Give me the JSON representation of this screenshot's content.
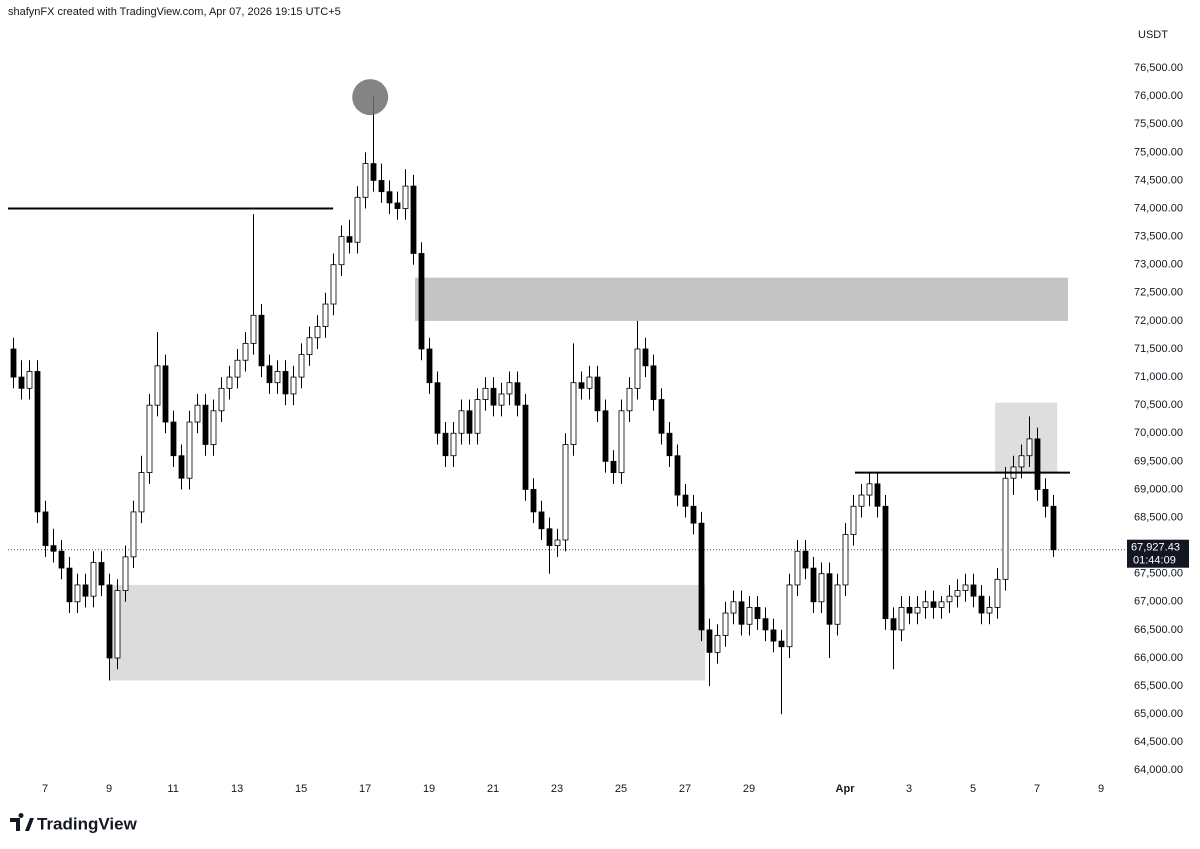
{
  "chart_data": {
    "type": "candlestick",
    "header": "shafynFX created with TradingView.com, Apr 07, 2026 19:15 UTC+5",
    "currency": "USDT",
    "brand": "TradingView",
    "up_color": "#ffffff",
    "down_color": "#000000",
    "wick_color": "#000000",
    "xlim": [
      5.84,
      40.75
    ],
    "ylim": [
      63650,
      77000
    ],
    "xticks": [
      7,
      9,
      11,
      13,
      15,
      17,
      19,
      21,
      23,
      25,
      27,
      29,
      {
        "value": 32,
        "label": "Apr"
      },
      {
        "value": 34,
        "label": "3"
      },
      {
        "value": 36,
        "label": "5"
      },
      {
        "value": 38,
        "label": "7"
      },
      {
        "value": 40,
        "label": "9"
      }
    ],
    "yticks": [
      {
        "value": 64000,
        "label": "64,000.00"
      },
      {
        "value": 64500,
        "label": "64,500.00"
      },
      {
        "value": 65000,
        "label": "65,000.00"
      },
      {
        "value": 65500,
        "label": "65,500.00"
      },
      {
        "value": 66000,
        "label": "66,000.00"
      },
      {
        "value": 66500,
        "label": "66,500.00"
      },
      {
        "value": 67000,
        "label": "67,000.00"
      },
      {
        "value": 67500,
        "label": "67,500.00"
      },
      {
        "value": 68000,
        "label": "68,000.00"
      },
      {
        "value": 68500,
        "label": "68,500.00"
      },
      {
        "value": 69000,
        "label": "69,000.00"
      },
      {
        "value": 69500,
        "label": "69,500.00"
      },
      {
        "value": 70000,
        "label": "70,000.00"
      },
      {
        "value": 70500,
        "label": "70,500.00"
      },
      {
        "value": 71000,
        "label": "71,000.00"
      },
      {
        "value": 71500,
        "label": "71,500.00"
      },
      {
        "value": 72000,
        "label": "72,000.00"
      },
      {
        "value": 72500,
        "label": "72,500.00"
      },
      {
        "value": 73000,
        "label": "73,000.00"
      },
      {
        "value": 73500,
        "label": "73,500.00"
      },
      {
        "value": 74000,
        "label": "74,000.00"
      },
      {
        "value": 74500,
        "label": "74,500.00"
      },
      {
        "value": 75000,
        "label": "75,000.00"
      },
      {
        "value": 75500,
        "label": "75,500.00"
      },
      {
        "value": 76000,
        "label": "76,000.00"
      },
      {
        "value": 76500,
        "label": "76,500.00"
      }
    ],
    "last_price": {
      "value": 67927.43,
      "label": "67,927.43"
    },
    "countdown": "01:44:09",
    "x": [
      6,
      6.25,
      6.5,
      6.75,
      7,
      7.25,
      7.5,
      7.75,
      8,
      8.25,
      8.5,
      8.75,
      9,
      9.25,
      9.5,
      9.75,
      10,
      10.25,
      10.5,
      10.75,
      11,
      11.25,
      11.5,
      11.75,
      12,
      12.25,
      12.5,
      12.75,
      13,
      13.25,
      13.5,
      13.75,
      14,
      14.25,
      14.5,
      14.75,
      15,
      15.25,
      15.5,
      15.75,
      16,
      16.25,
      16.5,
      16.75,
      17,
      17.25,
      17.5,
      17.75,
      18,
      18.25,
      18.5,
      18.75,
      19,
      19.25,
      19.5,
      19.75,
      20,
      20.25,
      20.5,
      20.75,
      21,
      21.25,
      21.5,
      21.75,
      22,
      22.25,
      22.5,
      22.75,
      23,
      23.25,
      23.5,
      23.75,
      24,
      24.25,
      24.5,
      24.75,
      25,
      25.25,
      25.5,
      25.75,
      26,
      26.25,
      26.5,
      26.75,
      27,
      27.25,
      27.5,
      27.75,
      28,
      28.25,
      28.5,
      28.75,
      29,
      29.25,
      29.5,
      29.75,
      30,
      30.25,
      30.5,
      30.75,
      31,
      31.25,
      31.5,
      31.75,
      32,
      32.25,
      32.5,
      32.75,
      33,
      33.25,
      33.5,
      33.75,
      34,
      34.25,
      34.5,
      34.75,
      35,
      35.25,
      35.5,
      35.75,
      36,
      36.25,
      36.5,
      36.75,
      37,
      37.25,
      37.5,
      37.75,
      38,
      38.25,
      38.5
    ],
    "open": [
      71500,
      71000,
      70800,
      71100,
      68600,
      68000,
      67900,
      67600,
      67000,
      67300,
      67100,
      67700,
      67300,
      66000,
      67200,
      67800,
      68600,
      69300,
      70500,
      71200,
      70200,
      69600,
      69200,
      70200,
      70500,
      69800,
      70400,
      70800,
      71000,
      71300,
      71600,
      72100,
      71200,
      70900,
      71100,
      70700,
      71000,
      71400,
      71700,
      71900,
      72300,
      73000,
      73500,
      73400,
      74200,
      74800,
      74500,
      74300,
      74100,
      74000,
      74400,
      73200,
      71500,
      70900,
      70000,
      69600,
      70000,
      70400,
      70000,
      70600,
      70800,
      70500,
      70700,
      70900,
      70500,
      69000,
      68600,
      68300,
      68000,
      68100,
      69800,
      70900,
      70800,
      71000,
      70400,
      69500,
      69300,
      70400,
      70800,
      71500,
      71200,
      70600,
      70000,
      69600,
      68900,
      68700,
      68400,
      66500,
      66100,
      66400,
      66800,
      67000,
      66600,
      66900,
      66700,
      66500,
      66300,
      66200,
      67300,
      67900,
      67600,
      67000,
      67500,
      66600,
      67300,
      68200,
      68700,
      68900,
      69100,
      68700,
      66700,
      66500,
      66900,
      66800,
      66900,
      67000,
      66900,
      67000,
      67100,
      67200,
      67300,
      67100,
      66800,
      66900,
      67400,
      69200,
      69400,
      69600,
      69900,
      69000,
      68700
    ],
    "high": [
      71700,
      71300,
      71300,
      71300,
      68800,
      68300,
      68100,
      67800,
      67500,
      67500,
      67900,
      67900,
      67500,
      67400,
      68000,
      68800,
      69600,
      70700,
      71800,
      71400,
      70400,
      69800,
      70400,
      70700,
      70700,
      70600,
      71000,
      71200,
      71500,
      71800,
      73900,
      72300,
      71400,
      71300,
      71300,
      71200,
      71600,
      71900,
      72100,
      72500,
      73200,
      73700,
      73800,
      74400,
      75000,
      76000,
      74800,
      74500,
      74300,
      74700,
      74600,
      73400,
      71700,
      71100,
      70200,
      70200,
      70600,
      70600,
      70800,
      71000,
      71000,
      70900,
      71100,
      71100,
      70700,
      69200,
      68800,
      68500,
      68300,
      70000,
      71600,
      71100,
      71200,
      71200,
      70600,
      69700,
      70600,
      71000,
      72000,
      71700,
      71400,
      70800,
      70200,
      69800,
      69100,
      68900,
      68600,
      66700,
      66600,
      67000,
      67200,
      67200,
      67100,
      67100,
      66900,
      66700,
      66500,
      67500,
      68100,
      68100,
      67800,
      67700,
      67700,
      67500,
      68400,
      68900,
      69100,
      69300,
      69300,
      68900,
      66900,
      67100,
      67100,
      67100,
      67200,
      67200,
      67100,
      67300,
      67400,
      67500,
      67500,
      67300,
      67100,
      67600,
      69400,
      69600,
      69800,
      70300,
      70100,
      69200,
      68900
    ],
    "low": [
      70800,
      70600,
      70600,
      68400,
      67800,
      67700,
      67400,
      66800,
      66800,
      66900,
      66900,
      67100,
      65600,
      65800,
      67000,
      67600,
      68400,
      69100,
      70300,
      70000,
      69400,
      69000,
      69000,
      70000,
      69600,
      69600,
      70200,
      70600,
      70800,
      71100,
      71400,
      71000,
      70700,
      70700,
      70500,
      70500,
      70800,
      71200,
      71500,
      71700,
      72100,
      72800,
      73200,
      73200,
      74000,
      74300,
      74100,
      73900,
      73800,
      73800,
      73000,
      71300,
      70700,
      69800,
      69400,
      69400,
      69800,
      69800,
      69800,
      70400,
      70300,
      70300,
      70500,
      70300,
      68800,
      68400,
      68100,
      67500,
      67800,
      67900,
      69600,
      70600,
      70600,
      70200,
      69300,
      69100,
      69100,
      70200,
      70600,
      71000,
      70400,
      69800,
      69400,
      68700,
      68500,
      68200,
      66300,
      65500,
      65900,
      66200,
      66600,
      66400,
      66400,
      66500,
      66300,
      66100,
      65000,
      66000,
      67100,
      67400,
      66800,
      66800,
      66000,
      66400,
      67100,
      68000,
      68500,
      68700,
      68500,
      66500,
      65800,
      66300,
      66600,
      66600,
      66700,
      66700,
      66700,
      66800,
      66900,
      67000,
      66900,
      66600,
      66600,
      66700,
      67200,
      68900,
      69200,
      69400,
      68800,
      68500,
      67800
    ],
    "close": [
      71000,
      70800,
      71100,
      68600,
      68000,
      67900,
      67600,
      67000,
      67300,
      67100,
      67700,
      67300,
      66000,
      67200,
      67800,
      68600,
      69300,
      70500,
      71200,
      70200,
      69600,
      69200,
      70200,
      70500,
      69800,
      70400,
      70800,
      71000,
      71300,
      71600,
      72100,
      71200,
      70900,
      71100,
      70700,
      71000,
      71400,
      71700,
      71900,
      72300,
      73000,
      73500,
      73400,
      74200,
      74800,
      74500,
      74300,
      74100,
      74000,
      74400,
      73200,
      71500,
      70900,
      70000,
      69600,
      70000,
      70400,
      70000,
      70600,
      70800,
      70500,
      70700,
      70900,
      70500,
      69000,
      68600,
      68300,
      68000,
      68100,
      69800,
      70900,
      70800,
      71000,
      70400,
      69500,
      69300,
      70400,
      70800,
      71500,
      71200,
      70600,
      70000,
      69600,
      68900,
      68700,
      68400,
      66500,
      66100,
      66400,
      66800,
      67000,
      66600,
      66900,
      66700,
      66500,
      66300,
      66200,
      67300,
      67900,
      67600,
      67000,
      67500,
      66600,
      67300,
      68200,
      68700,
      68900,
      69100,
      68700,
      66700,
      66500,
      66900,
      66800,
      66900,
      67000,
      66900,
      67000,
      67100,
      67200,
      67300,
      67100,
      66800,
      66900,
      67400,
      69200,
      69400,
      69600,
      69900,
      69000,
      68700,
      67927.43
    ],
    "drawings": {
      "zones": [
        {
          "x": [
            18.56,
            38.97
          ],
          "y": [
            72000,
            72770
          ],
          "color": "#c4c4c4"
        },
        {
          "x": [
            9.0,
            27.63
          ],
          "y": [
            65600,
            67300
          ],
          "color": "#dcdcdc"
        },
        {
          "x": [
            36.69,
            38.63
          ],
          "y": [
            69300,
            70543
          ],
          "color": "#dedede"
        }
      ],
      "lines": [
        {
          "x": [
            5.84,
            16.0
          ],
          "y": 74000,
          "color": "#000000"
        },
        {
          "x": [
            32.31,
            39.03
          ],
          "y": 69300,
          "color": "#000000"
        }
      ],
      "circles": [
        {
          "x": 17.16,
          "y": 75984,
          "color": "#6e6e6e"
        }
      ]
    }
  }
}
